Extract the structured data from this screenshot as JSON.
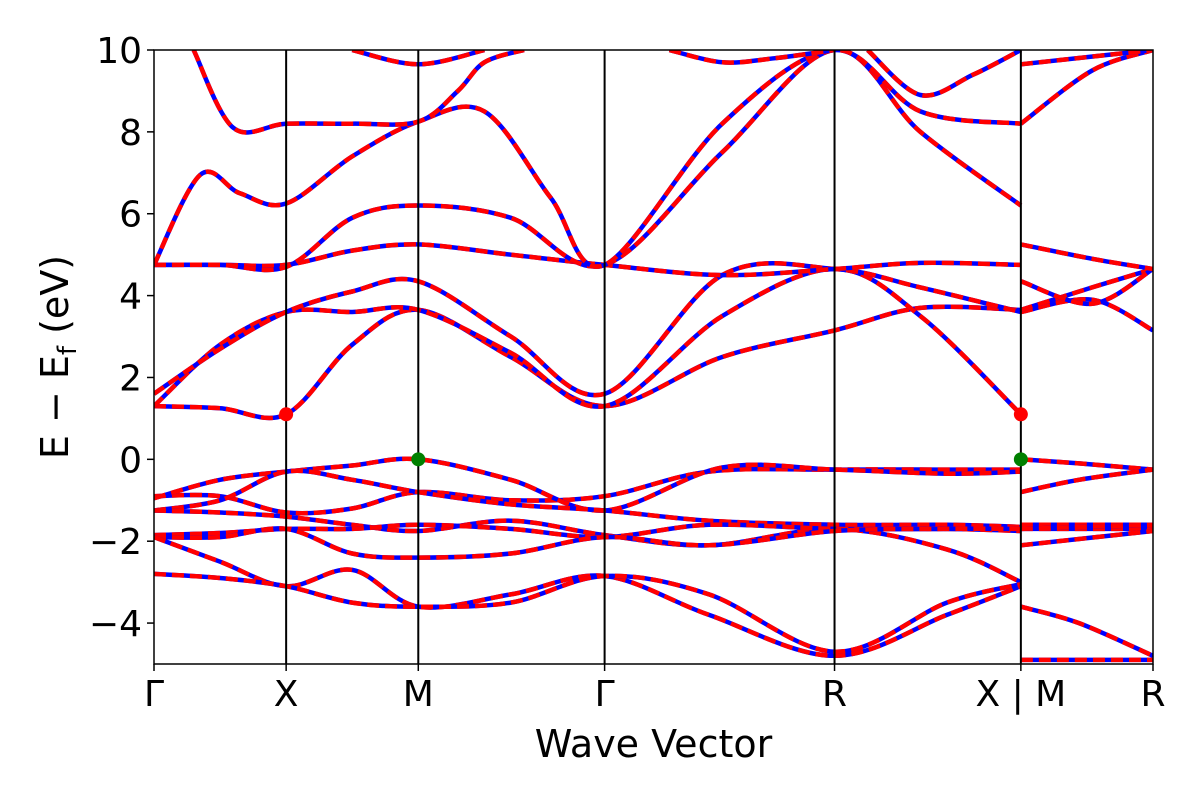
{
  "chart_data": {
    "type": "line",
    "title": "",
    "xlabel": "Wave Vector",
    "ylabel_parts": {
      "main": "E − E",
      "subscript": "f",
      "unit": " (eV)"
    },
    "ylim": [
      -5,
      10
    ],
    "yticks": [
      -4,
      -2,
      0,
      2,
      4,
      6,
      8,
      10
    ],
    "ytick_labels": [
      "−4",
      "−2",
      "0",
      "2",
      "4",
      "6",
      "8",
      "10"
    ],
    "kpath": [
      {
        "label": "Γ",
        "x": 0.0
      },
      {
        "label": "X",
        "x": 1.0
      },
      {
        "label": "M",
        "x": 2.0
      },
      {
        "label": "Γ",
        "x": 3.41
      },
      {
        "label": "R",
        "x": 5.15
      },
      {
        "label": "X | M",
        "x": 6.56
      },
      {
        "label": "R",
        "x": 7.56
      }
    ],
    "xlim": [
      0,
      7.56
    ],
    "grid": false,
    "series_style": [
      {
        "color": "#0000ff",
        "style": "solid",
        "width": 4.5
      },
      {
        "color": "#ff0000",
        "style": "dashed",
        "width": 4.5
      }
    ],
    "bands": [
      [
        [
          0,
          -0.9
        ],
        [
          0.5,
          -0.9
        ],
        [
          1.0,
          -1.3
        ],
        [
          1.5,
          -1.2
        ],
        [
          2.0,
          -0.8
        ],
        [
          2.7,
          -1.0
        ],
        [
          3.41,
          -0.9
        ],
        [
          4.2,
          -0.3
        ],
        [
          5.15,
          -0.25
        ],
        [
          6.0,
          -0.25
        ],
        [
          6.56,
          -0.25
        ],
        [
          6.56,
          0.0
        ],
        [
          7.0,
          -0.1
        ],
        [
          7.56,
          -0.25
        ]
      ],
      [
        [
          0,
          -0.95
        ],
        [
          0.5,
          -0.5
        ],
        [
          1.0,
          -0.3
        ],
        [
          1.5,
          -0.15
        ],
        [
          2.0,
          0.0
        ],
        [
          2.7,
          -0.5
        ],
        [
          3.41,
          -1.25
        ],
        [
          4.3,
          -0.2
        ],
        [
          5.15,
          -0.25
        ],
        [
          6.0,
          -0.35
        ],
        [
          6.56,
          -0.3
        ],
        [
          6.56,
          -0.8
        ],
        [
          7.0,
          -0.5
        ],
        [
          7.56,
          -0.25
        ]
      ],
      [
        [
          0,
          -1.25
        ],
        [
          0.5,
          -1.0
        ],
        [
          1.0,
          -0.3
        ],
        [
          1.5,
          -0.5
        ],
        [
          2.0,
          -0.8
        ],
        [
          2.7,
          -1.1
        ],
        [
          3.41,
          -1.25
        ],
        [
          4.2,
          -1.5
        ],
        [
          5.15,
          -1.6
        ],
        [
          6.0,
          -1.6
        ],
        [
          6.56,
          -1.65
        ],
        [
          6.56,
          -1.6
        ],
        [
          7.56,
          -1.6
        ]
      ],
      [
        [
          0,
          -1.25
        ],
        [
          0.5,
          -1.3
        ],
        [
          1.0,
          -1.4
        ],
        [
          1.5,
          -1.6
        ],
        [
          2.0,
          -1.75
        ],
        [
          2.7,
          -1.5
        ],
        [
          3.41,
          -1.85
        ],
        [
          4.2,
          -2.1
        ],
        [
          5.15,
          -1.7
        ],
        [
          6.0,
          -2.2
        ],
        [
          6.56,
          -3.0
        ],
        [
          6.56,
          -1.7
        ],
        [
          7.56,
          -1.7
        ]
      ],
      [
        [
          0,
          -1.85
        ],
        [
          0.5,
          -1.8
        ],
        [
          1.0,
          -1.7
        ],
        [
          1.5,
          -1.7
        ],
        [
          2.0,
          -1.6
        ],
        [
          2.7,
          -1.7
        ],
        [
          3.41,
          -1.9
        ],
        [
          4.2,
          -1.6
        ],
        [
          5.15,
          -1.7
        ],
        [
          6.0,
          -1.7
        ],
        [
          6.56,
          -1.75
        ],
        [
          6.56,
          -2.1
        ],
        [
          7.56,
          -1.75
        ]
      ],
      [
        [
          0,
          -1.9
        ],
        [
          0.5,
          -1.9
        ],
        [
          1.0,
          -1.7
        ],
        [
          1.5,
          -2.3
        ],
        [
          2.0,
          -2.4
        ],
        [
          2.7,
          -2.3
        ],
        [
          3.41,
          -1.9
        ],
        [
          4.2,
          -2.1
        ],
        [
          5.15,
          -1.75
        ],
        [
          6.0,
          -1.7
        ],
        [
          6.56,
          -1.7
        ],
        [
          6.56,
          -1.7
        ],
        [
          7.56,
          -1.6
        ]
      ],
      [
        [
          0,
          -1.9
        ],
        [
          0.5,
          -2.5
        ],
        [
          1.0,
          -3.1
        ],
        [
          1.5,
          -2.7
        ],
        [
          2.0,
          -3.6
        ],
        [
          2.7,
          -3.3
        ],
        [
          3.41,
          -2.85
        ],
        [
          4.2,
          -3.8
        ],
        [
          5.15,
          -4.8
        ],
        [
          6.0,
          -3.8
        ],
        [
          6.56,
          -3.1
        ],
        [
          6.56,
          -3.6
        ],
        [
          7.0,
          -4.0
        ],
        [
          7.56,
          -4.8
        ]
      ],
      [
        [
          0,
          -2.8
        ],
        [
          0.5,
          -2.9
        ],
        [
          1.0,
          -3.1
        ],
        [
          1.5,
          -3.5
        ],
        [
          2.0,
          -3.6
        ],
        [
          2.7,
          -3.5
        ],
        [
          3.41,
          -2.85
        ],
        [
          4.2,
          -3.3
        ],
        [
          5.15,
          -4.7
        ],
        [
          6.0,
          -3.5
        ],
        [
          6.56,
          -3.05
        ],
        [
          6.56,
          -4.9
        ],
        [
          7.56,
          -4.9
        ]
      ],
      [
        [
          0,
          1.3
        ],
        [
          0.5,
          1.25
        ],
        [
          1.0,
          1.1
        ],
        [
          1.5,
          2.8
        ],
        [
          2.0,
          3.65
        ],
        [
          2.7,
          2.5
        ],
        [
          3.41,
          1.3
        ],
        [
          4.3,
          2.5
        ],
        [
          5.15,
          3.15
        ],
        [
          5.8,
          3.7
        ],
        [
          6.56,
          3.65
        ],
        [
          6.56,
          3.6
        ],
        [
          7.1,
          3.9
        ],
        [
          7.56,
          3.15
        ]
      ],
      [
        [
          0,
          1.3
        ],
        [
          0.5,
          2.8
        ],
        [
          1.0,
          3.6
        ],
        [
          1.5,
          3.6
        ],
        [
          2.0,
          3.65
        ],
        [
          2.7,
          2.6
        ],
        [
          3.41,
          1.3
        ],
        [
          4.3,
          3.5
        ],
        [
          5.15,
          4.65
        ],
        [
          5.8,
          3.5
        ],
        [
          6.56,
          1.1
        ],
        [
          6.56,
          3.65
        ],
        [
          7.1,
          4.2
        ],
        [
          7.56,
          4.65
        ]
      ],
      [
        [
          0,
          1.6
        ],
        [
          0.5,
          2.7
        ],
        [
          1.0,
          3.6
        ],
        [
          1.5,
          4.1
        ],
        [
          2.0,
          4.35
        ],
        [
          2.7,
          3.0
        ],
        [
          3.41,
          1.6
        ],
        [
          4.3,
          4.5
        ],
        [
          5.15,
          4.65
        ],
        [
          5.8,
          4.2
        ],
        [
          6.56,
          3.6
        ],
        [
          6.56,
          4.35
        ],
        [
          7.1,
          3.8
        ],
        [
          7.56,
          4.65
        ]
      ],
      [
        [
          0,
          4.75
        ],
        [
          0.5,
          4.75
        ],
        [
          1.0,
          4.75
        ],
        [
          1.5,
          5.1
        ],
        [
          2.0,
          5.25
        ],
        [
          2.7,
          5.0
        ],
        [
          3.41,
          4.75
        ],
        [
          4.3,
          4.5
        ],
        [
          5.15,
          4.65
        ],
        [
          5.8,
          4.8
        ],
        [
          6.56,
          4.75
        ],
        [
          6.56,
          5.25
        ],
        [
          7.1,
          4.9
        ],
        [
          7.56,
          4.65
        ]
      ],
      [
        [
          0,
          4.75
        ],
        [
          0.5,
          4.75
        ],
        [
          1.0,
          4.7
        ],
        [
          1.5,
          5.9
        ],
        [
          2.0,
          6.2
        ],
        [
          2.7,
          5.9
        ],
        [
          3.41,
          4.75
        ],
        [
          4.3,
          7.5
        ],
        [
          5.15,
          10.0
        ],
        [
          5.8,
          8.0
        ],
        [
          6.56,
          6.2
        ],
        [
          6.56,
          8.2
        ],
        [
          7.1,
          9.5
        ],
        [
          7.56,
          10.0
        ]
      ],
      [
        [
          0,
          4.75
        ],
        [
          0.35,
          6.95
        ],
        [
          0.65,
          6.5
        ],
        [
          1.0,
          6.25
        ],
        [
          1.5,
          7.4
        ],
        [
          2.0,
          8.25
        ],
        [
          2.5,
          8.5
        ],
        [
          3.0,
          6.4
        ],
        [
          3.41,
          4.75
        ],
        [
          4.3,
          8.2
        ],
        [
          5.15,
          10.0
        ],
        [
          5.8,
          8.5
        ],
        [
          6.56,
          8.2
        ],
        [
          6.56,
          9.65
        ],
        [
          7.56,
          10.0
        ]
      ],
      [
        [
          0.3,
          10.0
        ],
        [
          0.6,
          8.1
        ],
        [
          1.0,
          8.2
        ],
        [
          1.5,
          8.2
        ],
        [
          2.0,
          8.25
        ],
        [
          2.3,
          9.0
        ],
        [
          2.5,
          9.7
        ],
        [
          2.8,
          10.0
        ]
      ],
      [
        [
          1.5,
          10.0
        ],
        [
          2.0,
          9.65
        ],
        [
          2.5,
          10.0
        ]
      ],
      [
        [
          3.9,
          10.0
        ],
        [
          4.3,
          9.7
        ],
        [
          4.7,
          9.8
        ],
        [
          5.15,
          10.0
        ]
      ],
      [
        [
          5.4,
          10.0
        ],
        [
          5.8,
          8.9
        ],
        [
          6.2,
          9.4
        ],
        [
          6.56,
          10.0
        ]
      ]
    ],
    "markers": [
      {
        "x": 1.0,
        "y": 1.1,
        "color": "#ff0000",
        "meaning": "cbm"
      },
      {
        "x": 6.56,
        "y": 1.1,
        "color": "#ff0000",
        "meaning": "cbm"
      },
      {
        "x": 2.0,
        "y": 0.0,
        "color": "#008000",
        "meaning": "vbm"
      },
      {
        "x": 6.56,
        "y": 0.0,
        "color": "#008000",
        "meaning": "vbm"
      }
    ]
  }
}
